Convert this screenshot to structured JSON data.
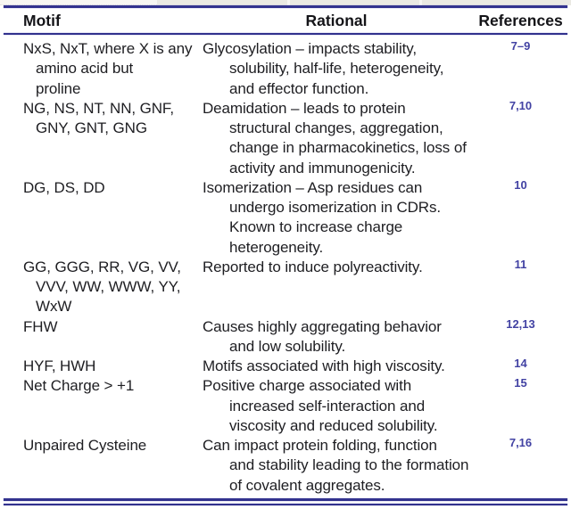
{
  "colors": {
    "rule_navy": "#32328e",
    "reference_blue": "#4242a3",
    "body_text": "#1e1e22"
  },
  "table": {
    "headers": {
      "motif": "Motif",
      "rational": "Rational",
      "references": "References"
    },
    "rows": [
      {
        "motif": "NxS, NxT, where X is any amino acid but proline",
        "motif_lines": [
          "NxS, NxT, where X is any",
          "amino acid but",
          "proline"
        ],
        "rational": "Glycosylation – impacts stability, solubility, half-life, heterogeneity, and effector function.",
        "rational_lines": [
          "Glycosylation – impacts stability,",
          "solubility, half-life, heterogeneity,",
          "and effector function."
        ],
        "references": "7–9"
      },
      {
        "motif": "NG, NS, NT, NN, GNF, GNY, GNT, GNG",
        "motif_lines": [
          "NG, NS, NT, NN, GNF,",
          "GNY, GNT, GNG"
        ],
        "rational": "Deamidation – leads to protein structural changes, aggregation, change in pharmacokinetics, loss of activity and immunogenicity.",
        "rational_lines": [
          "Deamidation – leads to protein",
          "structural changes, aggregation,",
          "change in pharmacokinetics, loss of",
          "activity and immunogenicity."
        ],
        "references": "7,10"
      },
      {
        "motif": "DG, DS, DD",
        "motif_lines": [
          "DG, DS, DD"
        ],
        "rational": "Isomerization – Asp residues can undergo isomerization in CDRs. Known to increase charge heterogeneity.",
        "rational_lines": [
          "Isomerization – Asp residues can",
          "undergo isomerization in CDRs.",
          "Known to increase charge",
          "heterogeneity."
        ],
        "references": "10"
      },
      {
        "motif": "GG, GGG, RR, VG, VV, VVV, WW, WWW, YY, WxW",
        "motif_lines": [
          "GG, GGG, RR, VG, VV,",
          "VVV, WW, WWW, YY,",
          "WxW"
        ],
        "rational": "Reported to induce polyreactivity.",
        "rational_lines": [
          "Reported to induce polyreactivity."
        ],
        "references": "11"
      },
      {
        "motif": "FHW",
        "motif_lines": [
          "FHW"
        ],
        "rational": "Causes highly aggregating behavior and low solubility.",
        "rational_lines": [
          "Causes highly aggregating behavior",
          "and low solubility."
        ],
        "references": "12,13"
      },
      {
        "motif": "HYF, HWH",
        "motif_lines": [
          "HYF, HWH"
        ],
        "rational": "Motifs associated with high viscosity.",
        "rational_lines": [
          "Motifs associated with high viscosity."
        ],
        "references": "14"
      },
      {
        "motif": "Net Charge > +1",
        "motif_lines": [
          "Net Charge > +1"
        ],
        "rational": "Positive charge associated with increased self-interaction and viscosity and reduced solubility.",
        "rational_lines": [
          "Positive charge associated with",
          "increased self-interaction and",
          "viscosity and reduced solubility."
        ],
        "references": "15"
      },
      {
        "motif": "Unpaired Cysteine",
        "motif_lines": [
          "Unpaired Cysteine"
        ],
        "rational": "Can impact protein folding, function and stability leading to the formation of covalent aggregates.",
        "rational_lines": [
          "Can impact protein folding, function",
          "and stability leading to the formation",
          "of covalent aggregates."
        ],
        "references": "7,16"
      }
    ]
  }
}
